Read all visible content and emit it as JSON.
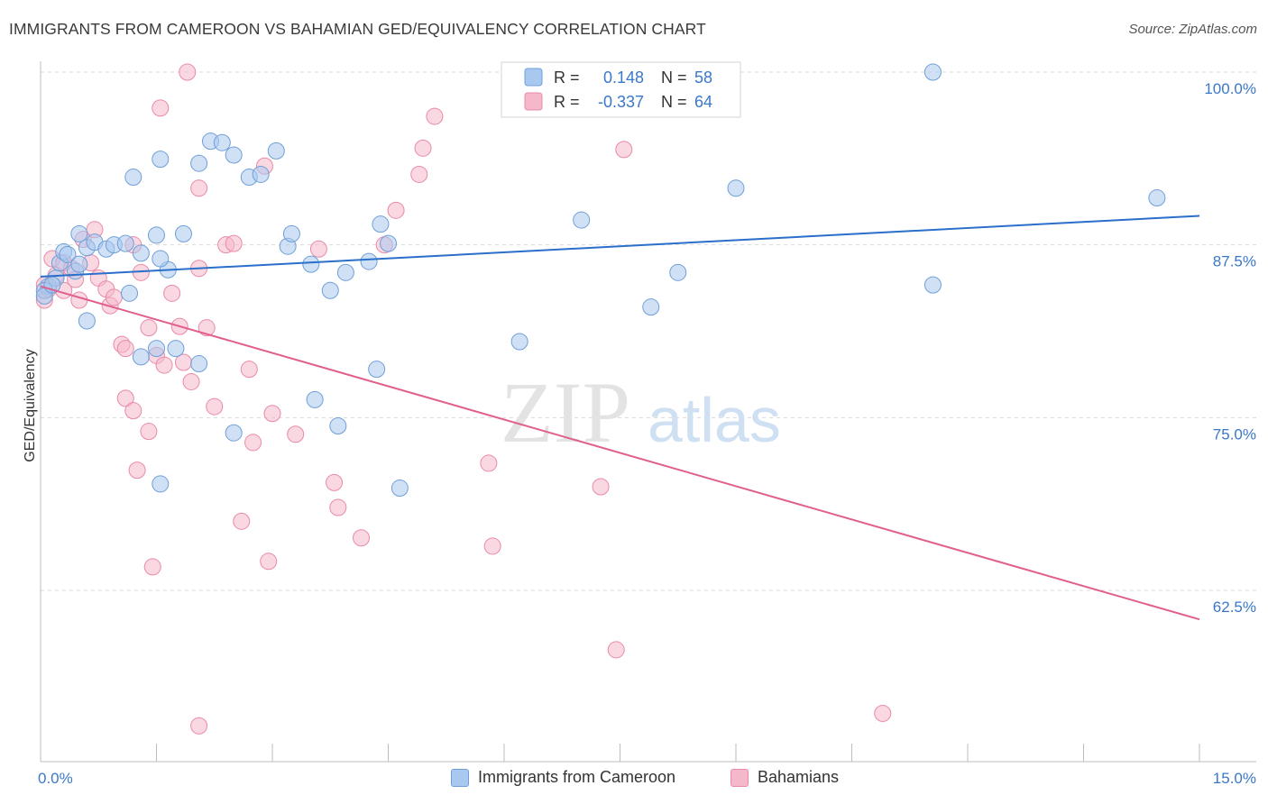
{
  "title": "IMMIGRANTS FROM CAMEROON VS BAHAMIAN GED/EQUIVALENCY CORRELATION CHART",
  "source": "Source: ZipAtlas.com",
  "watermark": {
    "part1": "ZIP",
    "part2": "atlas"
  },
  "legend_top": {
    "rows": [
      {
        "r_label": "R =",
        "r_value": "0.148",
        "n_label": "N =",
        "n_value": "58"
      },
      {
        "r_label": "R =",
        "r_value": "-0.337",
        "n_label": "N =",
        "n_value": "64"
      }
    ]
  },
  "legend_bottom": [
    "Immigrants from Cameroon",
    "Bahamians"
  ],
  "colors": {
    "blue_fill": "#a9c8ef",
    "blue_stroke": "#6f9fd8",
    "blue_line": "#2a6fc9",
    "pink_fill": "#f5b8cb",
    "pink_stroke": "#e98aa8",
    "pink_line": "#e05f8e",
    "tick_label": "#3a78c9",
    "grid": "#d9d9d9"
  },
  "chart_data": {
    "type": "scatter",
    "title": "IMMIGRANTS FROM CAMEROON VS BAHAMIAN GED/EQUIVALENCY CORRELATION CHART",
    "xlabel": "",
    "ylabel": "GED/Equivalency",
    "xlim": [
      0,
      15
    ],
    "ylim": [
      53,
      101.5
    ],
    "x_tick_labels": [
      "0.0%",
      "15.0%"
    ],
    "y_ticks": [
      62.5,
      75.0,
      87.5,
      100.0
    ],
    "y_tick_labels": [
      "62.5%",
      "75.0%",
      "87.5%",
      "100.0%"
    ],
    "grid": true,
    "legend_placement": "top-center",
    "series": [
      {
        "name": "Immigrants from Cameroon",
        "color": "#a9c8ef",
        "trend": {
          "x": [
            0,
            15
          ],
          "y": [
            85.2,
            89.6
          ]
        },
        "points": [
          [
            0.1,
            84.5
          ],
          [
            0.2,
            85.1
          ],
          [
            0.25,
            86.2
          ],
          [
            0.3,
            87.0
          ],
          [
            0.35,
            86.8
          ],
          [
            0.45,
            85.6
          ],
          [
            0.5,
            86.1
          ],
          [
            0.5,
            88.3
          ],
          [
            0.6,
            87.3
          ],
          [
            0.7,
            87.7
          ],
          [
            0.85,
            87.2
          ],
          [
            0.95,
            87.5
          ],
          [
            1.1,
            87.6
          ],
          [
            1.3,
            86.9
          ],
          [
            1.5,
            88.2
          ],
          [
            1.65,
            85.7
          ],
          [
            1.85,
            88.3
          ],
          [
            1.55,
            86.5
          ],
          [
            2.2,
            95.0
          ],
          [
            2.35,
            94.9
          ],
          [
            2.5,
            94.0
          ],
          [
            2.7,
            92.4
          ],
          [
            2.85,
            92.6
          ],
          [
            3.05,
            94.3
          ],
          [
            1.55,
            93.7
          ],
          [
            2.05,
            93.4
          ],
          [
            1.2,
            92.4
          ],
          [
            3.2,
            87.4
          ],
          [
            3.25,
            88.3
          ],
          [
            3.5,
            86.1
          ],
          [
            3.95,
            85.5
          ],
          [
            3.75,
            84.2
          ],
          [
            4.25,
            86.3
          ],
          [
            4.5,
            87.6
          ],
          [
            4.4,
            89.0
          ],
          [
            0.6,
            82.0
          ],
          [
            1.15,
            84.0
          ],
          [
            1.3,
            79.4
          ],
          [
            1.5,
            80.0
          ],
          [
            1.75,
            80.0
          ],
          [
            2.05,
            78.9
          ],
          [
            2.5,
            73.9
          ],
          [
            1.55,
            70.2
          ],
          [
            3.55,
            76.3
          ],
          [
            3.85,
            74.4
          ],
          [
            4.35,
            78.5
          ],
          [
            4.65,
            69.9
          ],
          [
            6.2,
            80.5
          ],
          [
            7.0,
            89.3
          ],
          [
            7.9,
            83.0
          ],
          [
            8.25,
            85.5
          ],
          [
            9.0,
            91.6
          ],
          [
            11.55,
            84.6
          ],
          [
            11.55,
            100.0
          ],
          [
            14.45,
            90.9
          ],
          [
            0.05,
            84.2
          ],
          [
            0.05,
            83.8
          ],
          [
            0.15,
            84.6
          ]
        ]
      },
      {
        "name": "Bahamians",
        "color": "#f5b8cb",
        "trend": {
          "x": [
            0,
            15
          ],
          "y": [
            84.5,
            60.4
          ]
        },
        "points": [
          [
            0.05,
            83.5
          ],
          [
            0.1,
            84.3
          ],
          [
            0.15,
            86.5
          ],
          [
            0.2,
            85.3
          ],
          [
            0.3,
            86.2
          ],
          [
            0.3,
            84.2
          ],
          [
            0.4,
            85.8
          ],
          [
            0.45,
            85.0
          ],
          [
            0.5,
            83.5
          ],
          [
            0.55,
            87.9
          ],
          [
            0.65,
            86.2
          ],
          [
            0.7,
            88.6
          ],
          [
            0.75,
            85.1
          ],
          [
            0.85,
            84.3
          ],
          [
            0.9,
            83.1
          ],
          [
            0.95,
            83.7
          ],
          [
            1.05,
            80.3
          ],
          [
            1.1,
            80.0
          ],
          [
            1.2,
            87.5
          ],
          [
            1.3,
            85.5
          ],
          [
            1.4,
            81.5
          ],
          [
            1.5,
            79.5
          ],
          [
            1.6,
            78.8
          ],
          [
            1.7,
            84.0
          ],
          [
            1.8,
            81.6
          ],
          [
            1.85,
            79.0
          ],
          [
            1.95,
            77.6
          ],
          [
            2.05,
            85.8
          ],
          [
            2.15,
            81.5
          ],
          [
            2.25,
            75.8
          ],
          [
            2.4,
            87.5
          ],
          [
            2.5,
            87.6
          ],
          [
            2.6,
            67.5
          ],
          [
            2.7,
            78.5
          ],
          [
            2.75,
            73.2
          ],
          [
            2.9,
            93.2
          ],
          [
            2.95,
            64.6
          ],
          [
            3.0,
            75.3
          ],
          [
            1.1,
            76.4
          ],
          [
            1.2,
            75.5
          ],
          [
            1.25,
            71.2
          ],
          [
            1.4,
            74.0
          ],
          [
            1.45,
            64.2
          ],
          [
            1.55,
            97.4
          ],
          [
            1.9,
            100.0
          ],
          [
            2.05,
            91.6
          ],
          [
            2.05,
            52.7
          ],
          [
            3.3,
            73.8
          ],
          [
            3.6,
            87.2
          ],
          [
            3.8,
            70.3
          ],
          [
            3.85,
            68.5
          ],
          [
            4.15,
            66.3
          ],
          [
            4.45,
            87.5
          ],
          [
            4.6,
            90.0
          ],
          [
            4.9,
            92.6
          ],
          [
            4.95,
            94.5
          ],
          [
            5.1,
            96.8
          ],
          [
            5.8,
            71.7
          ],
          [
            5.85,
            65.7
          ],
          [
            7.25,
            70.0
          ],
          [
            7.45,
            58.2
          ],
          [
            7.55,
            94.4
          ],
          [
            10.9,
            53.6
          ],
          [
            0.05,
            84.6
          ]
        ]
      }
    ]
  }
}
